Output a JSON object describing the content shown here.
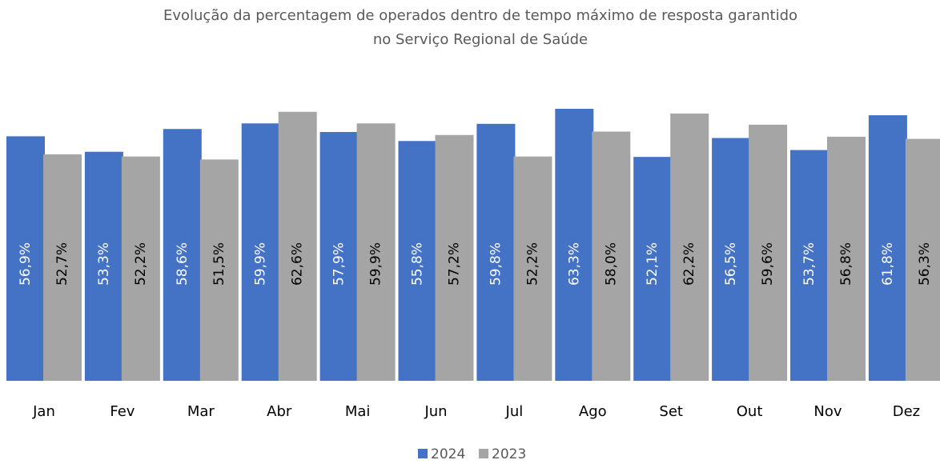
{
  "chart_data": {
    "type": "bar",
    "title": [
      "Evolução da percentagem de operados dentro de tempo máximo de resposta garantido",
      "no Serviço Regional de Saúde"
    ],
    "categories": [
      "Jan",
      "Fev",
      "Mar",
      "Abr",
      "Mai",
      "Jun",
      "Jul",
      "Ago",
      "Set",
      "Out",
      "Nov",
      "Dez"
    ],
    "series": [
      {
        "name": "2024",
        "color": "#4472c4",
        "label_color": "#ffffff",
        "values": [
          56.9,
          53.3,
          58.6,
          59.9,
          57.9,
          55.8,
          59.8,
          63.3,
          52.1,
          56.5,
          53.7,
          61.8
        ],
        "value_labels": [
          "56,9%",
          "53,3%",
          "58,6%",
          "59,9%",
          "57,9%",
          "55,8%",
          "59,8%",
          "63,3%",
          "52,1%",
          "56,5%",
          "53,7%",
          "61,8%"
        ]
      },
      {
        "name": "2023",
        "color": "#a5a5a5",
        "label_color": "#000000",
        "values": [
          52.7,
          52.2,
          51.5,
          62.6,
          59.9,
          57.2,
          52.2,
          58.0,
          62.2,
          59.6,
          56.8,
          56.3
        ],
        "value_labels": [
          "52,7%",
          "52,2%",
          "51,5%",
          "62,6%",
          "59,9%",
          "57,2%",
          "52,2%",
          "58,0%",
          "62,2%",
          "59,6%",
          "56,8%",
          "56,3%"
        ]
      }
    ],
    "ylim": [
      0,
      70
    ],
    "legend": "bottom"
  }
}
